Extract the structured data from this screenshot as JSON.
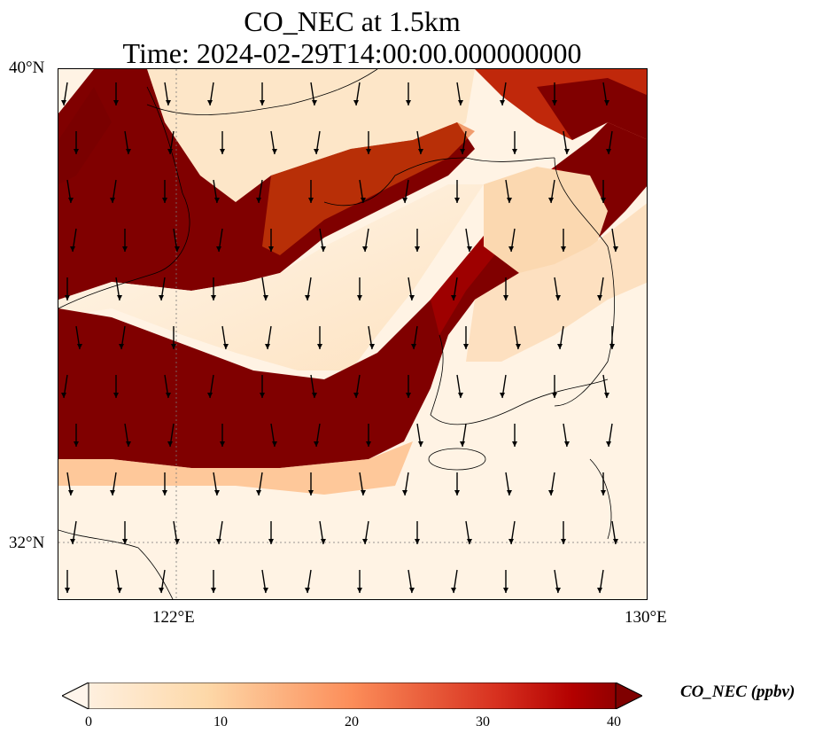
{
  "title": {
    "line1": "CO_NEC at 1.5km",
    "line2": "Time: 2024-02-29T14:00:00.000000000"
  },
  "axes": {
    "lat_ticks": [
      "40°N",
      "32°N"
    ],
    "lon_ticks": [
      "122°E",
      "130°E"
    ],
    "lat_range": [
      31,
      40
    ],
    "lon_range": [
      120,
      130
    ],
    "gridlines": "dotted"
  },
  "colorbar": {
    "label": "CO_NEC (ppbv)",
    "ticks": [
      "0",
      "10",
      "20",
      "30",
      "40"
    ],
    "range": [
      0,
      40
    ],
    "extend": "both",
    "colors": [
      "#fff5eb",
      "#fdd0a2",
      "#fd8d3c",
      "#d94801",
      "#7f0000"
    ]
  },
  "field": {
    "variable": "CO_NEC",
    "units": "ppbv",
    "description_colors": {
      "low": "#fff5eb",
      "high": "#800000"
    }
  }
}
